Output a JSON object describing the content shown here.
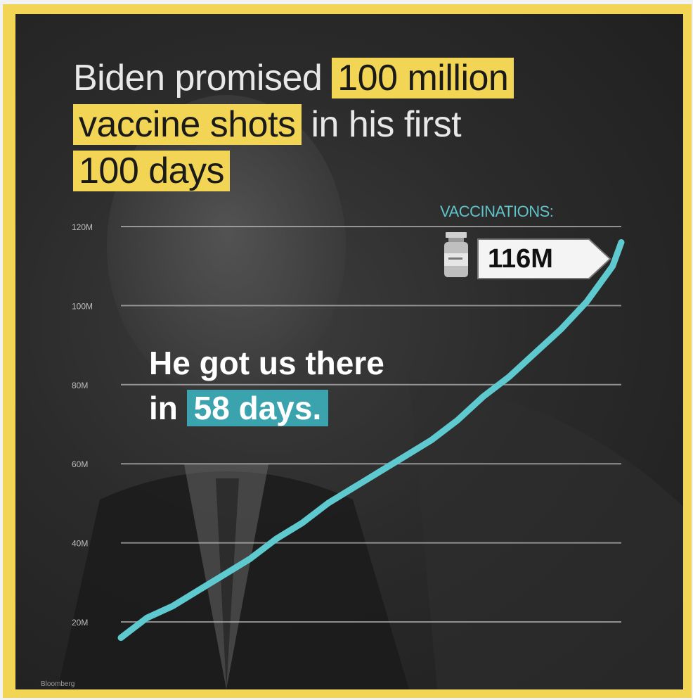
{
  "headline": {
    "part1": "Biden promised ",
    "highlight1": "100 million",
    "highlight2": "vaccine shots",
    "part2": " in his first",
    "highlight3": "100 days"
  },
  "subline": {
    "line1": "He got us there",
    "prefix": "in ",
    "highlight": "58 days."
  },
  "callout": {
    "label": "VACCINATIONS:",
    "value": "116M"
  },
  "source": "Bloomberg",
  "colors": {
    "frame": "#f2d555",
    "highlight": "#f2d555",
    "line": "#5ec9cf",
    "teal_box": "#3aa3ad"
  },
  "chart_data": {
    "type": "line",
    "title": "Biden promised 100 million vaccine shots in his first 100 days",
    "ylabel": "",
    "xlabel": "",
    "yticks": [
      "120M",
      "100M",
      "80M",
      "60M",
      "40M",
      "20M"
    ],
    "ytick_values": [
      120,
      100,
      80,
      60,
      40,
      20
    ],
    "ylim": [
      15,
      120
    ],
    "grid": true,
    "x": [
      0,
      3,
      6,
      9,
      12,
      15,
      18,
      21,
      24,
      27,
      30,
      33,
      36,
      39,
      42,
      45,
      48,
      51,
      54,
      57,
      58
    ],
    "series": [
      {
        "values": [
          16,
          21,
          24,
          28,
          32,
          36,
          41,
          45,
          50,
          54,
          58,
          62,
          66,
          71,
          77,
          82,
          88,
          94,
          101,
          110,
          116
        ]
      }
    ]
  }
}
